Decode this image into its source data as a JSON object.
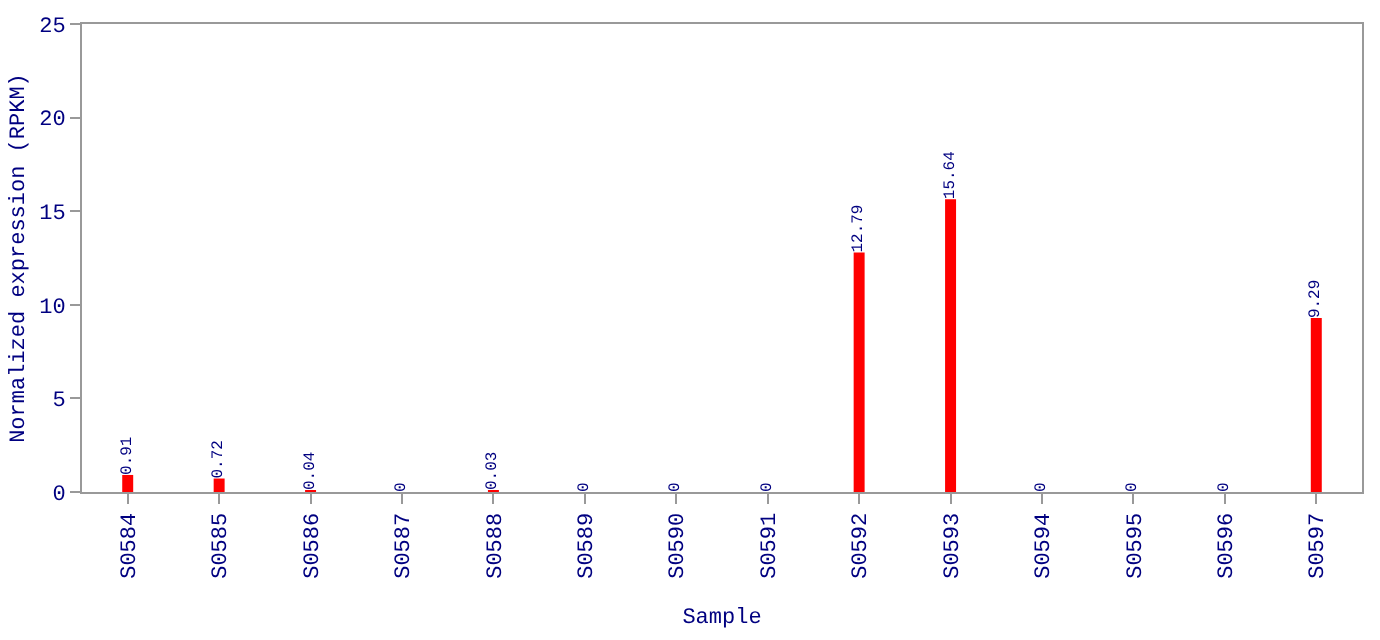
{
  "chart_data": {
    "type": "bar",
    "xlabel": "Sample",
    "ylabel": "Normalized expression (RPKM)",
    "categories": [
      "S0584",
      "S0585",
      "S0586",
      "S0587",
      "S0588",
      "S0589",
      "S0590",
      "S0591",
      "S0592",
      "S0593",
      "S0594",
      "S0595",
      "S0596",
      "S0597"
    ],
    "values": [
      0.91,
      0.72,
      0.04,
      0,
      0.03,
      0,
      0,
      0,
      12.79,
      15.64,
      0,
      0,
      0,
      9.29
    ],
    "color": "#ff0000",
    "ylim": [
      0,
      25
    ],
    "yticks": [
      0,
      5,
      10,
      15,
      20,
      25
    ],
    "data_labels": true
  }
}
